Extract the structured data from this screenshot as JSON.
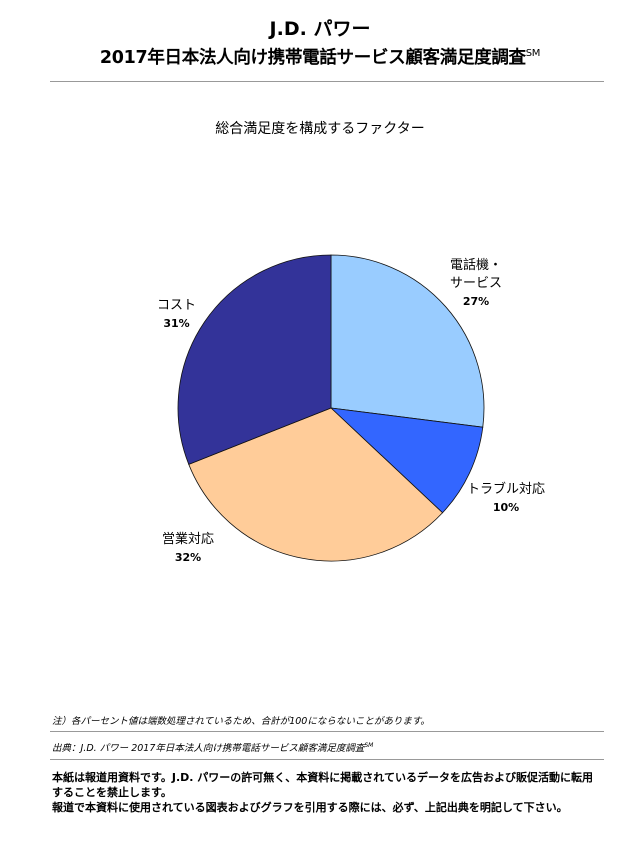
{
  "header": {
    "brand": "J.D. パワー",
    "title": "2017年日本法人向け携帯電話サービス顧客満足度調査",
    "title_mark": "SM"
  },
  "chart_data": {
    "type": "pie",
    "title": "総合満足度を構成するファクター",
    "start": "12 o'clock, clockwise",
    "slices": [
      {
        "label": "電話機・\nサービス",
        "value": 27,
        "pct_label": "27%",
        "color": "#99CCFF"
      },
      {
        "label": "トラブル対応",
        "value": 10,
        "pct_label": "10%",
        "color": "#3366FF"
      },
      {
        "label": "営業対応",
        "value": 32,
        "pct_label": "32%",
        "color": "#FFCC99"
      },
      {
        "label": "コスト",
        "value": 31,
        "pct_label": "31%",
        "color": "#333399"
      }
    ]
  },
  "footer": {
    "note": "注）各パーセント値は端数処理されているため、合計が100にならないことがあります。",
    "source": "出典：J.D. パワー 2017年日本法人向け携帯電話サービス顧客満足度調査",
    "source_mark": "SM",
    "disclaimer": [
      "本紙は報道用資料です。J.D. パワーの許可無く、本資料に掲載されているデータを広告および販促活動に転用",
      "することを禁止します。",
      "報道で本資料に使用されている図表およびグラフを引用する際には、必ず、上記出典を明記して下さい。"
    ]
  }
}
